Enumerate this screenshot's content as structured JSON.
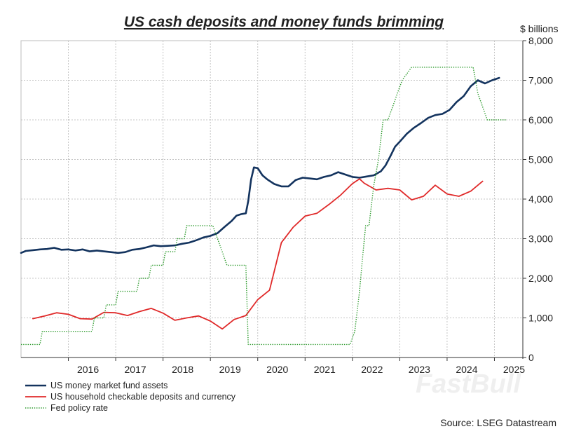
{
  "chart_data": {
    "type": "line",
    "title": "US cash deposits and money funds brimming",
    "ylabel": "$ billions",
    "ylim": [
      0,
      8000
    ],
    "yticks": [
      0,
      1000,
      2000,
      3000,
      4000,
      5000,
      6000,
      7000,
      8000
    ],
    "ytick_labels": [
      "0",
      "1,000",
      "2,000",
      "3,000",
      "4,000",
      "5,000",
      "6,000",
      "7,000",
      "8,000"
    ],
    "xlim": [
      2015.0,
      2025.6
    ],
    "xticks": [
      2016,
      2017,
      2018,
      2019,
      2020,
      2021,
      2022,
      2023,
      2024,
      2025
    ],
    "xtick_labels": [
      "2016",
      "2017",
      "2018",
      "2019",
      "2020",
      "2021",
      "2022",
      "2023",
      "2024",
      "2025"
    ],
    "grid": true,
    "legend_position": "bottom-left",
    "source": "Source: LSEG Datastream",
    "watermark": "FastBull",
    "series": [
      {
        "name": "US money market fund assets",
        "color": "#13335e",
        "style": "solid",
        "points": [
          [
            2015.0,
            2640
          ],
          [
            2015.1,
            2690
          ],
          [
            2015.25,
            2710
          ],
          [
            2015.4,
            2730
          ],
          [
            2015.55,
            2740
          ],
          [
            2015.7,
            2770
          ],
          [
            2015.85,
            2720
          ],
          [
            2016.0,
            2730
          ],
          [
            2016.15,
            2700
          ],
          [
            2016.3,
            2730
          ],
          [
            2016.45,
            2680
          ],
          [
            2016.6,
            2700
          ],
          [
            2016.75,
            2680
          ],
          [
            2016.9,
            2660
          ],
          [
            2017.05,
            2640
          ],
          [
            2017.2,
            2660
          ],
          [
            2017.35,
            2720
          ],
          [
            2017.5,
            2740
          ],
          [
            2017.65,
            2780
          ],
          [
            2017.8,
            2830
          ],
          [
            2017.95,
            2810
          ],
          [
            2018.1,
            2820
          ],
          [
            2018.25,
            2830
          ],
          [
            2018.4,
            2870
          ],
          [
            2018.55,
            2900
          ],
          [
            2018.7,
            2960
          ],
          [
            2018.85,
            3030
          ],
          [
            2019.0,
            3070
          ],
          [
            2019.15,
            3140
          ],
          [
            2019.3,
            3300
          ],
          [
            2019.45,
            3450
          ],
          [
            2019.55,
            3580
          ],
          [
            2019.65,
            3620
          ],
          [
            2019.75,
            3640
          ],
          [
            2019.8,
            3950
          ],
          [
            2019.86,
            4500
          ],
          [
            2019.92,
            4800
          ],
          [
            2020.0,
            4780
          ],
          [
            2020.1,
            4600
          ],
          [
            2020.2,
            4500
          ],
          [
            2020.35,
            4380
          ],
          [
            2020.5,
            4320
          ],
          [
            2020.65,
            4320
          ],
          [
            2020.8,
            4480
          ],
          [
            2020.95,
            4540
          ],
          [
            2021.1,
            4520
          ],
          [
            2021.25,
            4500
          ],
          [
            2021.4,
            4560
          ],
          [
            2021.55,
            4600
          ],
          [
            2021.7,
            4680
          ],
          [
            2021.85,
            4620
          ],
          [
            2022.0,
            4560
          ],
          [
            2022.15,
            4540
          ],
          [
            2022.3,
            4570
          ],
          [
            2022.45,
            4600
          ],
          [
            2022.6,
            4700
          ],
          [
            2022.7,
            4850
          ],
          [
            2022.8,
            5080
          ],
          [
            2022.9,
            5320
          ],
          [
            2023.0,
            5450
          ],
          [
            2023.15,
            5650
          ],
          [
            2023.3,
            5800
          ],
          [
            2023.45,
            5920
          ],
          [
            2023.6,
            6050
          ],
          [
            2023.75,
            6120
          ],
          [
            2023.9,
            6150
          ],
          [
            2024.05,
            6250
          ],
          [
            2024.2,
            6450
          ],
          [
            2024.35,
            6600
          ],
          [
            2024.5,
            6850
          ],
          [
            2024.65,
            7000
          ],
          [
            2024.8,
            6920
          ],
          [
            2024.95,
            7000
          ],
          [
            2025.1,
            7060
          ]
        ]
      },
      {
        "name": "US household checkable deposits and currency",
        "color": "#e02a2a",
        "style": "solid",
        "points": [
          [
            2015.25,
            980
          ],
          [
            2015.5,
            1050
          ],
          [
            2015.75,
            1130
          ],
          [
            2016.0,
            1090
          ],
          [
            2016.25,
            980
          ],
          [
            2016.5,
            970
          ],
          [
            2016.75,
            1140
          ],
          [
            2017.0,
            1130
          ],
          [
            2017.25,
            1060
          ],
          [
            2017.5,
            1160
          ],
          [
            2017.75,
            1240
          ],
          [
            2018.0,
            1120
          ],
          [
            2018.25,
            940
          ],
          [
            2018.5,
            1000
          ],
          [
            2018.75,
            1050
          ],
          [
            2019.0,
            920
          ],
          [
            2019.25,
            720
          ],
          [
            2019.5,
            960
          ],
          [
            2019.75,
            1060
          ],
          [
            2020.0,
            1460
          ],
          [
            2020.25,
            1700
          ],
          [
            2020.5,
            2900
          ],
          [
            2020.75,
            3290
          ],
          [
            2021.0,
            3570
          ],
          [
            2021.25,
            3640
          ],
          [
            2021.5,
            3860
          ],
          [
            2021.75,
            4100
          ],
          [
            2022.0,
            4390
          ],
          [
            2022.15,
            4510
          ],
          [
            2022.25,
            4400
          ],
          [
            2022.5,
            4230
          ],
          [
            2022.75,
            4270
          ],
          [
            2023.0,
            4230
          ],
          [
            2023.25,
            3980
          ],
          [
            2023.5,
            4070
          ],
          [
            2023.75,
            4350
          ],
          [
            2024.0,
            4130
          ],
          [
            2024.25,
            4070
          ],
          [
            2024.5,
            4200
          ],
          [
            2024.75,
            4450
          ]
        ]
      },
      {
        "name": "Fed policy rate",
        "color": "#2e9b2e",
        "style": "dotted",
        "points": [
          [
            2015.0,
            330
          ],
          [
            2015.4,
            330
          ],
          [
            2015.45,
            660
          ],
          [
            2016.5,
            660
          ],
          [
            2016.55,
            1000
          ],
          [
            2016.75,
            1000
          ],
          [
            2016.8,
            1330
          ],
          [
            2017.0,
            1330
          ],
          [
            2017.05,
            1670
          ],
          [
            2017.45,
            1670
          ],
          [
            2017.5,
            2000
          ],
          [
            2017.7,
            2000
          ],
          [
            2017.75,
            2330
          ],
          [
            2018.0,
            2330
          ],
          [
            2018.05,
            2670
          ],
          [
            2018.25,
            2670
          ],
          [
            2018.3,
            3000
          ],
          [
            2018.45,
            3000
          ],
          [
            2018.5,
            3330
          ],
          [
            2019.05,
            3330
          ],
          [
            2019.25,
            2670
          ],
          [
            2019.35,
            2330
          ],
          [
            2019.75,
            2330
          ],
          [
            2019.8,
            330
          ],
          [
            2021.95,
            330
          ],
          [
            2022.05,
            660
          ],
          [
            2022.15,
            1670
          ],
          [
            2022.2,
            2330
          ],
          [
            2022.28,
            3330
          ],
          [
            2022.35,
            3330
          ],
          [
            2022.45,
            4330
          ],
          [
            2022.55,
            5000
          ],
          [
            2022.65,
            6000
          ],
          [
            2022.75,
            6000
          ],
          [
            2022.85,
            6330
          ],
          [
            2022.95,
            6670
          ],
          [
            2023.05,
            7000
          ],
          [
            2023.25,
            7330
          ],
          [
            2024.55,
            7330
          ],
          [
            2024.65,
            6670
          ],
          [
            2024.75,
            6330
          ],
          [
            2024.85,
            6000
          ],
          [
            2025.25,
            6000
          ]
        ]
      }
    ]
  }
}
